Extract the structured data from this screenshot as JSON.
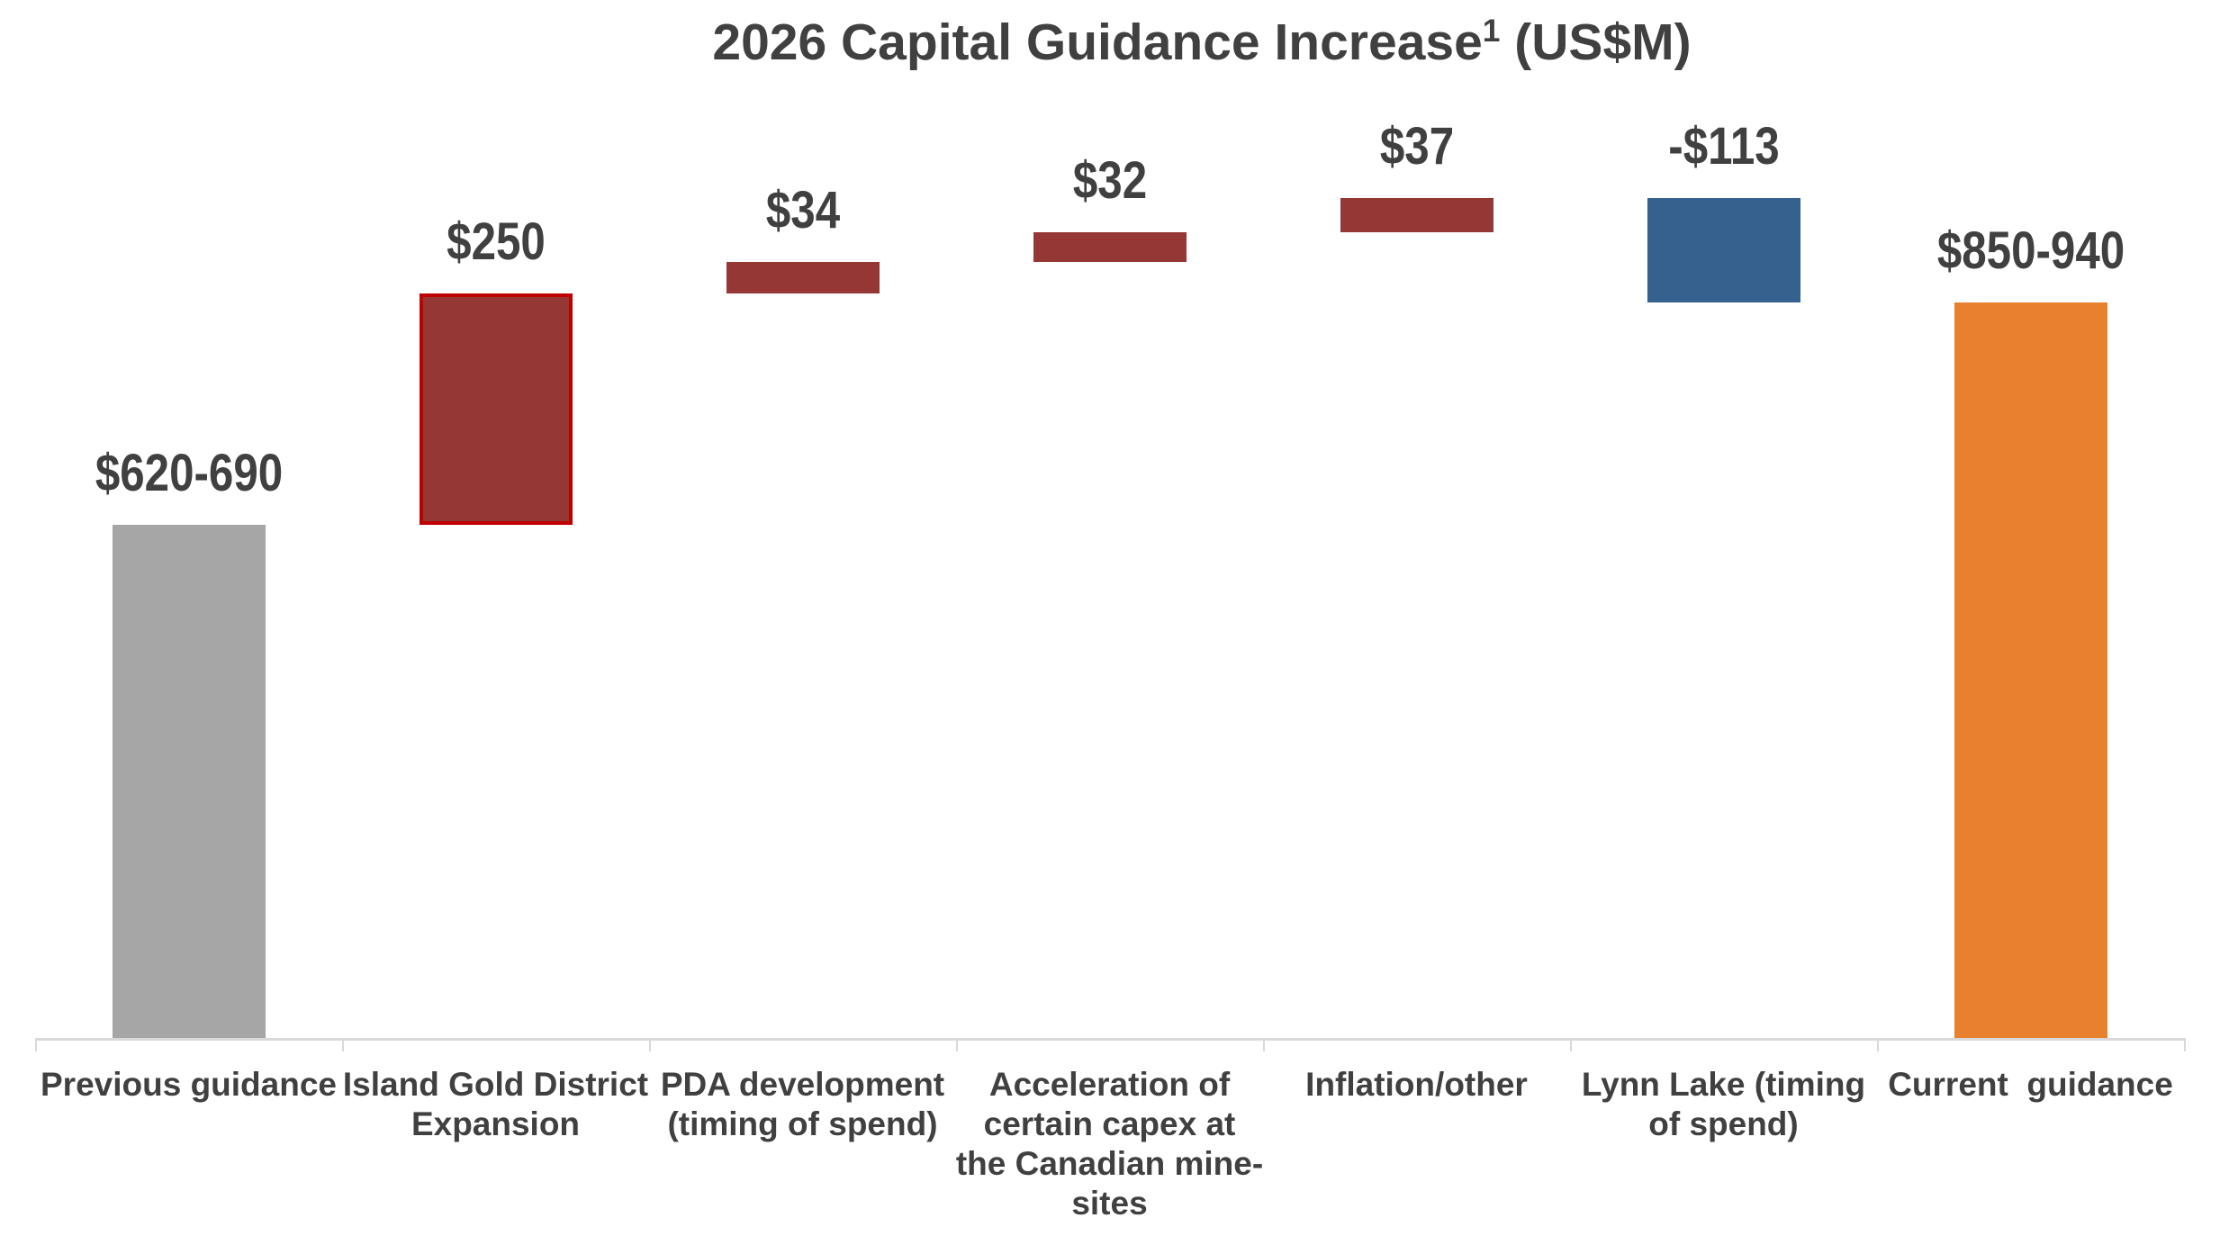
{
  "page": {
    "title_prefix": "2026 Capital Guidance Increase",
    "title_superscript": "1",
    "title_suffix": " (US$M)"
  },
  "colors": {
    "text": "#404040",
    "axis_line": "#d9d9d9",
    "previous_guidance_gray": "#a6a6a6",
    "increase_dark_red": "#953735",
    "highlight_border_red": "#c00000",
    "decrease_blue": "#36618e",
    "current_guidance_orange": "#e8812e"
  },
  "chart_data": {
    "type": "waterfall",
    "title": "2026 Capital Guidance Increase¹ (US$M)",
    "unit": "US$M",
    "xlabel": "",
    "ylabel": "",
    "axis": {
      "ymin": 100,
      "ymax": 1150,
      "gridlines": false,
      "legend": "none",
      "y_axis_labels_visible": false,
      "baseline_color": "#d9d9d9"
    },
    "categories": [
      "Previous guidance",
      "Island Gold District Expansion",
      "PDA development (timing of spend)",
      "Acceleration of certain capex at the Canadian mine-sites",
      "Inflation/other",
      "Lynn Lake (timing of spend)",
      "Current  guidance"
    ],
    "bars": [
      {
        "id": "previous-guidance",
        "category": "Previous guidance",
        "tick_lines": [
          "Previous guidance"
        ],
        "label": "$620-690",
        "role": "total",
        "value_range": [
          620,
          690
        ],
        "plot_value_mid": 655,
        "seg_start": 0,
        "seg_end": 655,
        "color": "#a6a6a6",
        "border": null
      },
      {
        "id": "island-gold-district-expansion",
        "category": "Island Gold District Expansion",
        "tick_lines": [
          "Island Gold District",
          "Expansion"
        ],
        "label": "$250",
        "role": "increase",
        "value": 250,
        "seg_start": 655,
        "seg_end": 905,
        "color": "#953735",
        "border": "#c00000"
      },
      {
        "id": "pda-development",
        "category": "PDA development (timing of spend)",
        "tick_lines": [
          "PDA development",
          "(timing of spend)"
        ],
        "label": "$34",
        "role": "increase",
        "value": 34,
        "seg_start": 905,
        "seg_end": 939,
        "color": "#953735",
        "border": null
      },
      {
        "id": "canadian-capex-acceleration",
        "category": "Acceleration of certain capex at the Canadian mine-sites",
        "tick_lines": [
          "Acceleration of",
          "certain capex at",
          "the Canadian mine-",
          "sites"
        ],
        "label": "$32",
        "role": "increase",
        "value": 32,
        "seg_start": 939,
        "seg_end": 971,
        "color": "#953735",
        "border": null
      },
      {
        "id": "inflation-other",
        "category": "Inflation/other",
        "tick_lines": [
          "Inflation/other"
        ],
        "label": "$37",
        "role": "increase",
        "value": 37,
        "seg_start": 971,
        "seg_end": 1008,
        "color": "#953735",
        "border": null
      },
      {
        "id": "lynn-lake",
        "category": "Lynn Lake (timing of spend)",
        "tick_lines": [
          "Lynn Lake (timing",
          "of spend)"
        ],
        "label": "-$113",
        "role": "decrease",
        "value": -113,
        "seg_start": 1008,
        "seg_end": 895,
        "color": "#36618e",
        "border": null
      },
      {
        "id": "current-guidance",
        "category": "Current  guidance",
        "tick_lines": [
          "Current  guidance"
        ],
        "label": "$850-940",
        "role": "total",
        "value_range": [
          850,
          940
        ],
        "plot_value_mid": 895,
        "seg_start": 0,
        "seg_end": 895,
        "color": "#e8812e",
        "border": null
      }
    ]
  }
}
